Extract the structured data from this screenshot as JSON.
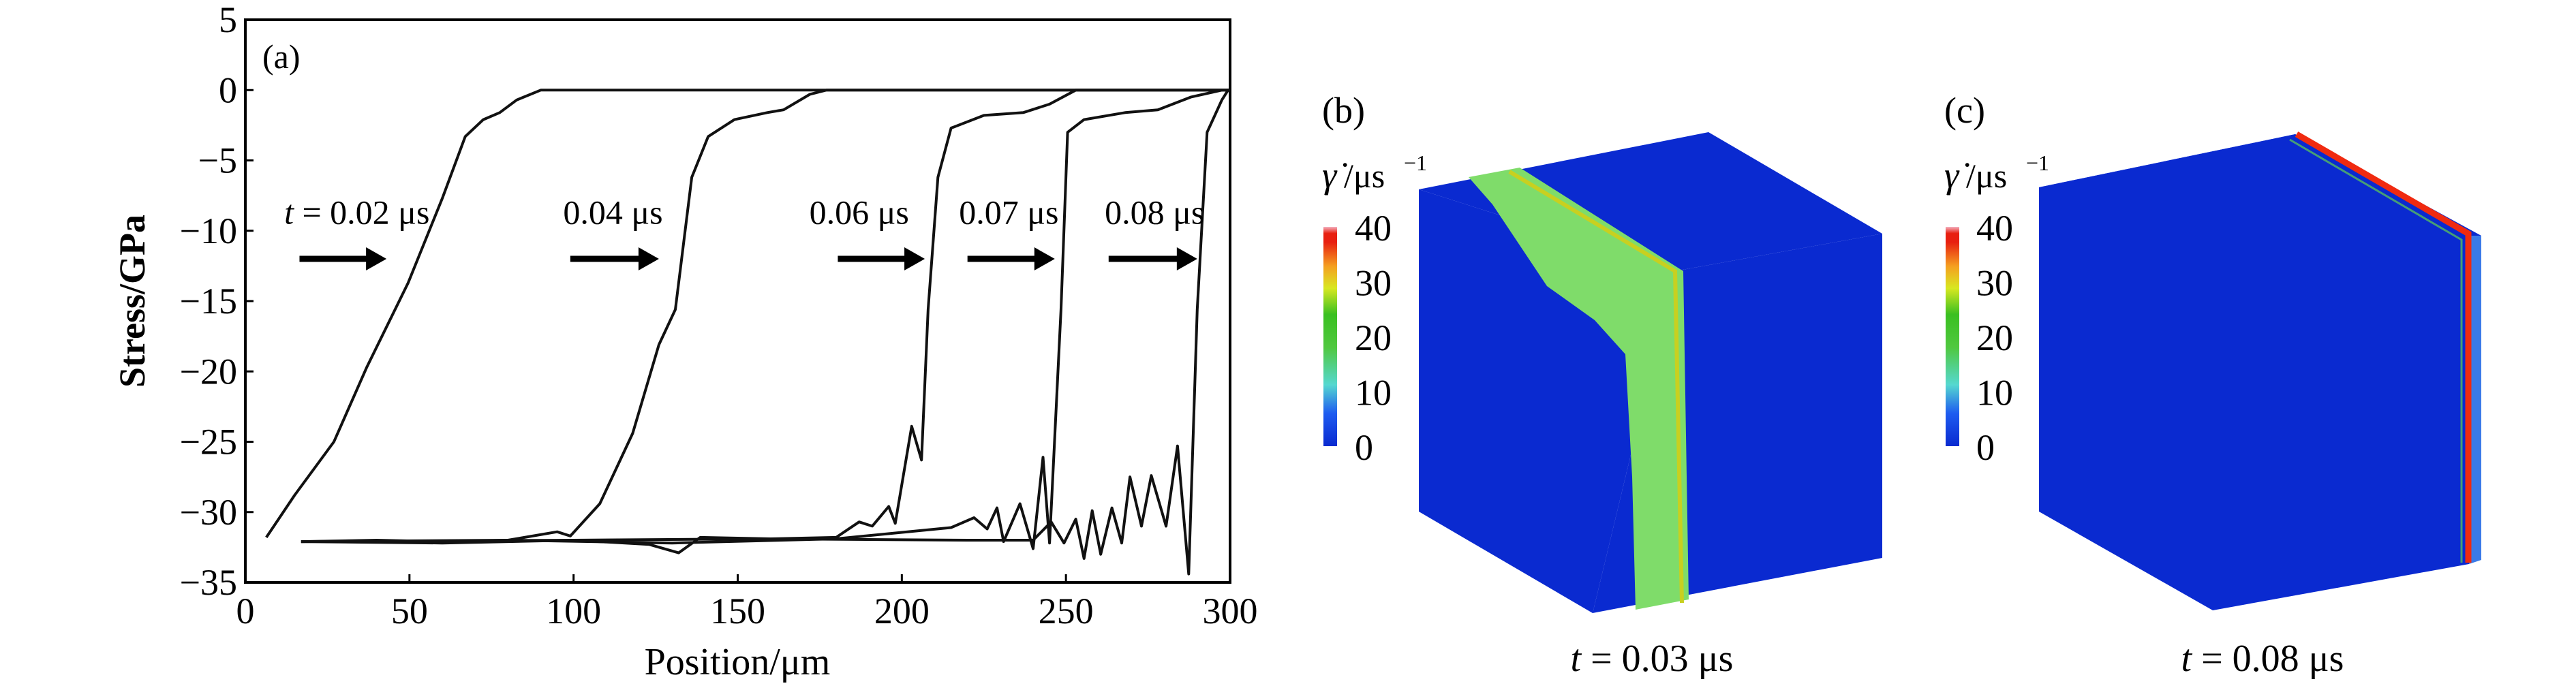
{
  "chart_data": {
    "type": "line",
    "panel_label": "(a)",
    "xlabel": "Position/μm",
    "ylabel": "Stress/GPa",
    "xlim": [
      0,
      300
    ],
    "ylim": [
      -35,
      5
    ],
    "xticks": [
      "0",
      "50",
      "100",
      "150",
      "200",
      "250",
      "300"
    ],
    "yticks": [
      "5",
      "0",
      "−5",
      "−10",
      "−15",
      "−20",
      "−25",
      "−30",
      "−35"
    ],
    "grid": false,
    "series": [
      {
        "name": "t = 0.02 μs",
        "x": [
          6.4,
          15,
          27,
          37,
          49.6,
          60,
          67,
          72.5,
          77.5,
          82.7,
          90,
          300
        ],
        "y": [
          -31.8,
          -28.8,
          -25,
          -19.7,
          -13.7,
          -7.7,
          -3.3,
          -2.1,
          -1.6,
          -0.7,
          0,
          0
        ]
      },
      {
        "name": "0.04 μs",
        "x": [
          17,
          40,
          60,
          80,
          95,
          99,
          108,
          118,
          126,
          131,
          136,
          141,
          149,
          159,
          164,
          172,
          177,
          300
        ],
        "y": [
          -32.1,
          -32.0,
          -32.1,
          -32.0,
          -31.4,
          -31.7,
          -29.4,
          -24.4,
          -18.1,
          -15.6,
          -6.2,
          -3.3,
          -2.1,
          -1.6,
          -1.4,
          -0.3,
          0,
          0
        ]
      },
      {
        "name": "0.06 μs",
        "x": [
          17,
          60,
          100,
          123,
          132,
          138.6,
          160,
          180,
          187,
          191,
          196,
          198,
          203,
          206,
          208,
          211,
          215,
          225,
          237,
          245,
          253,
          300
        ],
        "y": [
          -32.1,
          -32.2,
          -32.0,
          -32.3,
          -32.9,
          -31.8,
          -31.9,
          -31.8,
          -30.7,
          -31.0,
          -29.6,
          -30.8,
          -23.9,
          -26.3,
          -15.6,
          -6.2,
          -2.7,
          -1.8,
          -1.6,
          -1.0,
          0,
          0
        ]
      },
      {
        "name": "0.07 μs",
        "x": [
          17,
          80,
          130,
          180,
          215,
          222,
          226,
          229,
          231,
          236,
          240,
          243,
          245,
          248.5,
          250.5,
          255.5,
          268,
          278,
          288,
          297.5
        ],
        "y": [
          -32.1,
          -32.0,
          -32.2,
          -31.9,
          -31.1,
          -30.4,
          -31.2,
          -29.7,
          -32.1,
          -29.4,
          -32.6,
          -26.1,
          -32.2,
          -15.6,
          -3.0,
          -2.1,
          -1.6,
          -1.4,
          -0.5,
          0
        ]
      },
      {
        "name": "0.08 μs",
        "x": [
          17,
          100,
          160,
          220,
          240,
          245.5,
          249.4,
          253,
          255.5,
          258,
          260.6,
          264,
          267,
          269.5,
          273,
          276,
          280.5,
          284,
          287.4,
          290,
          293,
          297.5,
          299.4
        ],
        "y": [
          -32.1,
          -32.0,
          -31.9,
          -32.0,
          -32.0,
          -30.7,
          -32.2,
          -30.5,
          -33.3,
          -29.9,
          -33.0,
          -29.7,
          -32.2,
          -27.5,
          -31.0,
          -27.4,
          -31.0,
          -25.3,
          -34.4,
          -15.6,
          -3.0,
          -0.7,
          0
        ]
      }
    ],
    "annotations": [
      {
        "text_italic": "t",
        "text": " = 0.02 μs",
        "x": 34,
        "y": -9.5,
        "arrow_from": 16.5,
        "arrow_to": 43,
        "arrow_y": -12
      },
      {
        "text": "0.04 μs",
        "x": 112,
        "y": -9.5,
        "arrow_from": 99,
        "arrow_to": 126,
        "arrow_y": -12
      },
      {
        "text": "0.06 μs",
        "x": 187,
        "y": -9.5,
        "arrow_from": 180.5,
        "arrow_to": 207,
        "arrow_y": -12
      },
      {
        "text": "0.07 μs",
        "x": 232.6,
        "y": -9.5,
        "arrow_from": 220,
        "arrow_to": 246.6,
        "arrow_y": -12
      },
      {
        "text": "0.08 μs",
        "x": 277,
        "y": -9.5,
        "arrow_from": 263,
        "arrow_to": 290,
        "arrow_y": -12
      }
    ]
  },
  "panels": {
    "b": {
      "label": "(b)",
      "colorbar_title_symbol": "γ̇",
      "colorbar_title_unit": "/μs",
      "colorbar_title_exp": "−1",
      "colorbar_ticks": [
        "40",
        "30",
        "20",
        "10",
        "0"
      ],
      "caption_italic": "t",
      "caption": " = 0.03 μs"
    },
    "c": {
      "label": "(c)",
      "colorbar_title_symbol": "γ̇",
      "colorbar_title_unit": "/μs",
      "colorbar_title_exp": "−1",
      "colorbar_ticks": [
        "40",
        "30",
        "20",
        "10",
        "0"
      ],
      "caption_italic": "t",
      "caption": " = 0.08 μs"
    }
  },
  "colors": {
    "cube_blue": "#0a2ad0",
    "band_green": "#7fdc6a",
    "band_red": "#f02a10"
  }
}
